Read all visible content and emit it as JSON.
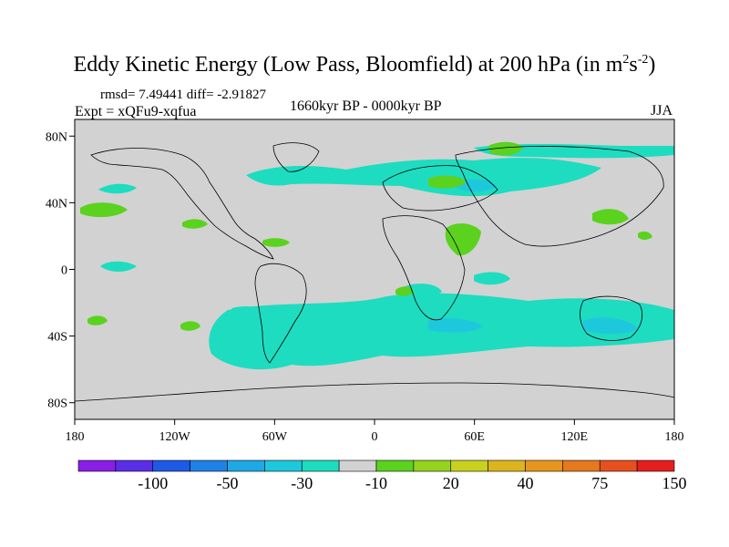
{
  "title": {
    "main": "Eddy Kinetic Energy (Low Pass, Bloomfield) at 200 hPa (in m",
    "sup1": "2",
    "mid": "s",
    "sup2": "-2",
    "end": ")"
  },
  "stats": "rmsd= 7.49441 diff= -2.91827",
  "experiment": "Expt = xQFu9-xqfua",
  "period": "1660kyr BP - 0000kyr BP",
  "season": "JJA",
  "axes": {
    "lat_ticks": [
      {
        "value": 80,
        "label": "80N"
      },
      {
        "value": 40,
        "label": "40N"
      },
      {
        "value": 0,
        "label": "0"
      },
      {
        "value": -40,
        "label": "40S"
      },
      {
        "value": -80,
        "label": "80S"
      }
    ],
    "lon_ticks": [
      {
        "value": -180,
        "label": "180"
      },
      {
        "value": -120,
        "label": "120W"
      },
      {
        "value": -60,
        "label": "60W"
      },
      {
        "value": 0,
        "label": "0"
      },
      {
        "value": 60,
        "label": "60E"
      },
      {
        "value": 120,
        "label": "120E"
      },
      {
        "value": 180,
        "label": "180"
      }
    ],
    "lon_range": [
      -180,
      180
    ],
    "lat_range": [
      -90,
      90
    ]
  },
  "colorbar": {
    "colors": [
      "#8a1ee6",
      "#5a2ee6",
      "#1e5ae6",
      "#1e82e6",
      "#1ea8e6",
      "#1ec8dc",
      "#1edcc0",
      "#d2d2d2",
      "#5ad21e",
      "#96d21e",
      "#c8d21e",
      "#dcb41e",
      "#e6961e",
      "#e6781e",
      "#e6501e",
      "#e61e1e"
    ],
    "labels": [
      {
        "boundary": 2,
        "text": "-100"
      },
      {
        "boundary": 4,
        "text": "-50"
      },
      {
        "boundary": 6,
        "text": "-30"
      },
      {
        "boundary": 8,
        "text": "-10"
      },
      {
        "boundary": 10,
        "text": "20"
      },
      {
        "boundary": 12,
        "text": "40"
      },
      {
        "boundary": 14,
        "text": "75"
      },
      {
        "boundary": 16,
        "text": "150"
      }
    ]
  },
  "colors": {
    "background_field": "#d2d2d2",
    "negative_small": "#1edcc0",
    "negative_medium": "#1ec8dc",
    "positive_small": "#5ad21e",
    "coastline": "#000000"
  }
}
